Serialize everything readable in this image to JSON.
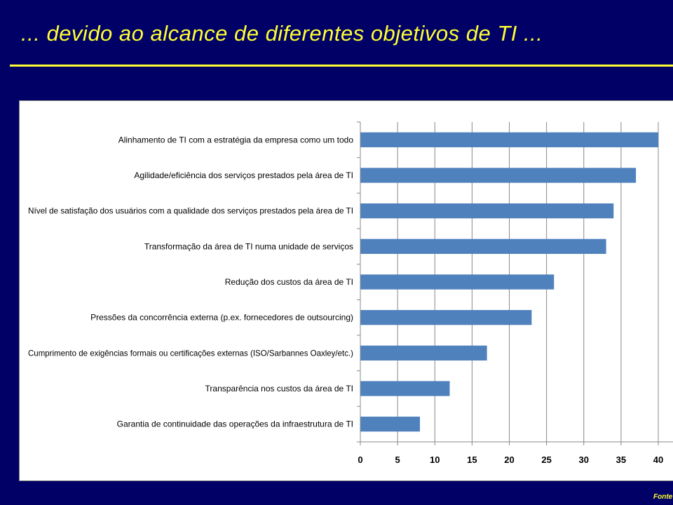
{
  "slide": {
    "title": "... devido ao alcance de diferentes objetivos de TI ...",
    "source_label": "Fonte",
    "title_color": "#ffff33",
    "background_color": "#000066"
  },
  "chart_data": {
    "type": "bar",
    "orientation": "horizontal",
    "categories": [
      "Alinhamento de TI com a estratégia da empresa como um todo",
      "Agilidade/eficiência dos serviços prestados pela área de TI",
      "Nível de satisfação  dos usuários com a qualidade dos serviços prestados pela área de TI",
      "Transformação  da área de TI numa unidade de serviços",
      "Redução dos custos da área de TI",
      "Pressões da concorrência externa (p.ex. fornecedores de outsourcing)",
      "Cumprimento de exigências formais ou certificações externas (ISO/Sarbannes Oaxley/etc.)",
      "Transparência nos custos da área de TI",
      "Garantia  de continuidade das operações da infraestrutura de TI"
    ],
    "values": [
      40,
      37,
      34,
      33,
      26,
      23,
      17,
      12,
      8
    ],
    "xlim": [
      0,
      40
    ],
    "xticks": [
      0,
      5,
      10,
      15,
      20,
      25,
      30,
      35,
      40
    ],
    "grid": true,
    "legend": "none",
    "bar_color": "#4f81bd",
    "title": "",
    "xlabel": "",
    "ylabel": ""
  }
}
